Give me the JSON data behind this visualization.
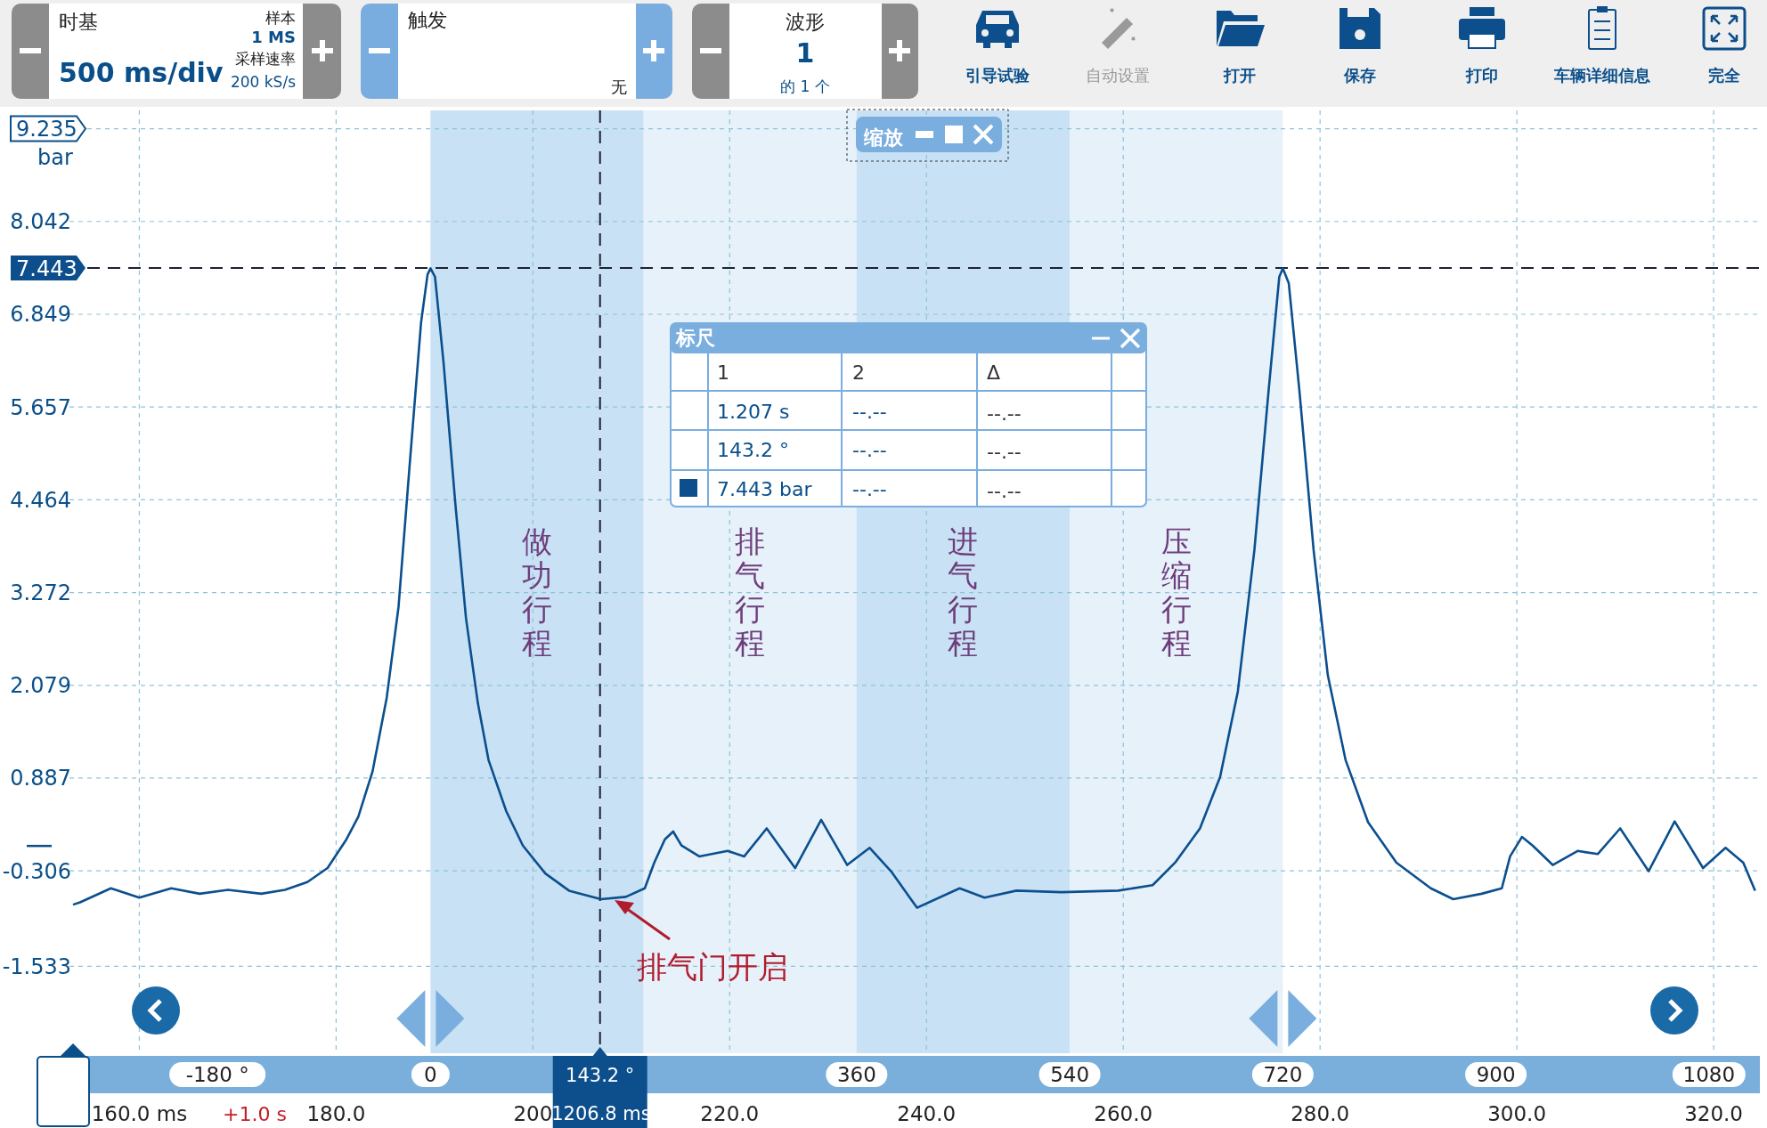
{
  "chart_data": {
    "type": "line",
    "ylabel": "bar",
    "xlim": [
      -305,
      1123
    ],
    "xticks": [
      {
        "value": -180,
        "label": "-180 °"
      },
      0,
      360,
      540,
      720,
      900,
      1080
    ],
    "x2lim": [
      152.9,
      324.7
    ],
    "x2ticks": [
      {
        "value": 160,
        "label": "160.0 ms"
      },
      {
        "value": 180,
        "label": "180.0"
      },
      {
        "value": 200,
        "label": "200"
      },
      {
        "value": 220,
        "label": "220.0"
      },
      {
        "value": 240,
        "label": "240.0"
      },
      {
        "value": 260,
        "label": "260.0"
      },
      {
        "value": 280,
        "label": "280.0"
      },
      {
        "value": 300,
        "label": "300.0"
      },
      {
        "value": 320,
        "label": "320.0"
      }
    ],
    "ylim": [
      -2.65,
      9.47
    ],
    "yticks": [
      -1.533,
      -0.306,
      0.887,
      2.079,
      3.272,
      4.464,
      5.657,
      6.849,
      8.042,
      9.235
    ],
    "grid": true,
    "line_style": "solid",
    "series": [
      {
        "color": "#0b4f8e",
        "x": [
          -302,
          -296,
          -270,
          -246,
          -219,
          -195,
          -171,
          -143,
          -123,
          -104,
          -87,
          -71,
          -61,
          -49,
          -37,
          -27,
          -18,
          -8,
          -2.5,
          0,
          3.8,
          11,
          21,
          30,
          40,
          49,
          64,
          78,
          97,
          117,
          144,
          165,
          181,
          189,
          198,
          205,
          212,
          227,
          251,
          265,
          284,
          308,
          330,
          352,
          371,
          389,
          411,
          447,
          468,
          495,
          533,
          581,
          610,
          629,
          650,
          667,
          682,
          696,
          708,
          717,
          720,
          725,
          734,
          746,
          758,
          773,
          792,
          816,
          845,
          864,
          888,
          905,
          912,
          922,
          931,
          948,
          969,
          986,
          1005,
          1029,
          1051,
          1075,
          1094,
          1109,
          1119
        ],
        "values": [
          -0.74,
          -0.71,
          -0.53,
          -0.65,
          -0.53,
          -0.6,
          -0.55,
          -0.6,
          -0.55,
          -0.45,
          -0.27,
          0.1,
          0.39,
          0.97,
          1.92,
          3.09,
          4.84,
          6.74,
          7.36,
          7.44,
          7.33,
          6.23,
          4.41,
          2.94,
          1.85,
          1.12,
          0.46,
          0.02,
          -0.34,
          -0.56,
          -0.67,
          -0.64,
          -0.53,
          -0.2,
          0.1,
          0.2,
          0.02,
          -0.12,
          -0.05,
          -0.12,
          0.24,
          -0.27,
          0.35,
          -0.23,
          -0.01,
          -0.31,
          -0.78,
          -0.53,
          -0.65,
          -0.56,
          -0.58,
          -0.56,
          -0.49,
          -0.2,
          0.24,
          0.9,
          2.0,
          3.82,
          5.87,
          7.33,
          7.44,
          7.25,
          5.87,
          3.82,
          2.21,
          1.12,
          0.32,
          -0.2,
          -0.53,
          -0.67,
          -0.6,
          -0.53,
          -0.12,
          0.13,
          0.02,
          -0.23,
          -0.05,
          -0.09,
          0.24,
          -0.31,
          0.33,
          -0.27,
          -0.01,
          -0.2,
          -0.56
        ]
      }
    ],
    "bands": [
      {
        "axis": "x",
        "from": 0,
        "to": 180,
        "label": "做功行程",
        "color": "#c9e1f4"
      },
      {
        "axis": "x",
        "from": 180,
        "to": 360,
        "label": "排气行程",
        "color": "#e6f1fa"
      },
      {
        "axis": "x",
        "from": 360,
        "to": 540,
        "label": "进气行程",
        "color": "#c9e1f4"
      },
      {
        "axis": "x",
        "from": 540,
        "to": 720,
        "label": "压缩行程",
        "color": "#e6f1fa"
      }
    ],
    "ref_lines": [
      {
        "axis": "y",
        "value": 7.443,
        "label": "7.443",
        "color": "#1c2233",
        "line_style": "dashed"
      },
      {
        "axis": "x",
        "value": 143.2,
        "label": "143.2 °",
        "color": "#1c2233",
        "line_style": "dashed"
      }
    ],
    "annotations": [
      "时基",
      "500 ms/div",
      "样本",
      "1 MS",
      "采样速率",
      "200 kS/s",
      "触发",
      "无",
      "波形",
      "1",
      "的 1 个",
      "引导试验",
      "自动设置",
      "打开",
      "保存",
      "打印",
      "车辆详细信息",
      "完全",
      "缩放",
      "标尺",
      "1",
      "2",
      "Δ",
      "1.207 s",
      "--.--",
      "--.--",
      "143.2 °",
      "--.--",
      "--.--",
      "7.443 bar",
      "--.--",
      "--.--",
      "+1.0 s",
      "1206.8 ms",
      "排气门开启"
    ]
  }
}
